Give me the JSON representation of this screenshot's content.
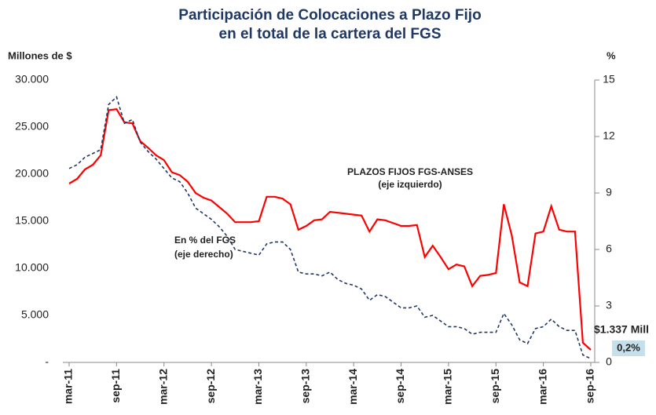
{
  "chart_data": {
    "type": "line",
    "title": [
      "Participación de Colocaciones a Plazo Fijo",
      "en el total de la cartera del FGS"
    ],
    "y_label": "Millones de $",
    "y2_label": "%",
    "categories": [
      "mar-11",
      null,
      null,
      null,
      null,
      null,
      "sep-11",
      null,
      null,
      null,
      null,
      null,
      "mar-12",
      null,
      null,
      null,
      null,
      null,
      "sep-12",
      null,
      null,
      null,
      null,
      null,
      "mar-13",
      null,
      null,
      null,
      null,
      null,
      "sep-13",
      null,
      null,
      null,
      null,
      null,
      "mar-14",
      null,
      null,
      null,
      null,
      null,
      "sep-14",
      null,
      null,
      null,
      null,
      null,
      "mar-15",
      null,
      null,
      null,
      null,
      null,
      "sep-15",
      null,
      null,
      null,
      null,
      null,
      "mar-16",
      null,
      null,
      null,
      null,
      null,
      "sep-16"
    ],
    "ylim": [
      0,
      30000
    ],
    "yticks": [
      {
        "value": 0,
        "label": "-"
      },
      {
        "value": 5000,
        "label": "5.000"
      },
      {
        "value": 10000,
        "label": "10.000"
      },
      {
        "value": 15000,
        "label": "15.000"
      },
      {
        "value": 20000,
        "label": "20.000"
      },
      {
        "value": 25000,
        "label": "25.000"
      },
      {
        "value": 30000,
        "label": "30.000"
      }
    ],
    "y2lim": [
      0,
      15
    ],
    "y2ticks": [
      0,
      3,
      6,
      9,
      12,
      15
    ],
    "series": [
      {
        "name": "PLAZOS FIJOS FGS-ANSES",
        "note": "(eje izquierdo)",
        "color": "#ff0000",
        "axis": "y",
        "dash": false,
        "values": [
          19000,
          19500,
          20500,
          21000,
          22000,
          26800,
          26900,
          25500,
          25400,
          23500,
          22800,
          22000,
          21500,
          20200,
          19900,
          19200,
          18000,
          17500,
          17200,
          16500,
          15800,
          14900,
          14900,
          14900,
          15000,
          17600,
          17600,
          17400,
          16800,
          14100,
          14500,
          15100,
          15200,
          16000,
          15900,
          15800,
          15700,
          15600,
          13900,
          15200,
          15100,
          14800,
          14500,
          14500,
          14600,
          11200,
          12400,
          11200,
          9900,
          10400,
          10200,
          8100,
          9200,
          9300,
          9500,
          16800,
          13500,
          8500,
          8100,
          13700,
          13900,
          16600,
          14100,
          13900,
          13900,
          2100,
          1337
        ],
        "value_labels": {
          "66": "$1.337 Mill"
        }
      },
      {
        "name": "En % del FGS",
        "note": "(eje derecho)",
        "color": "#1f3864",
        "axis": "y2",
        "dash": true,
        "values": [
          10.3,
          10.5,
          10.9,
          11.1,
          11.3,
          13.7,
          14.1,
          12.7,
          12.9,
          11.7,
          11.2,
          10.8,
          10.3,
          9.8,
          9.6,
          9.0,
          8.2,
          7.9,
          7.6,
          7.2,
          6.7,
          6.0,
          5.9,
          5.8,
          5.7,
          6.3,
          6.4,
          6.4,
          6.0,
          4.8,
          4.7,
          4.7,
          4.6,
          4.8,
          4.4,
          4.2,
          4.1,
          3.9,
          3.3,
          3.6,
          3.5,
          3.2,
          2.9,
          2.9,
          3.0,
          2.4,
          2.5,
          2.2,
          1.9,
          1.9,
          1.8,
          1.5,
          1.6,
          1.6,
          1.6,
          2.6,
          2.0,
          1.2,
          1.0,
          1.8,
          1.9,
          2.3,
          1.9,
          1.7,
          1.7,
          0.4,
          0.2
        ],
        "value_labels": {
          "66": "0,2%"
        }
      }
    ]
  }
}
